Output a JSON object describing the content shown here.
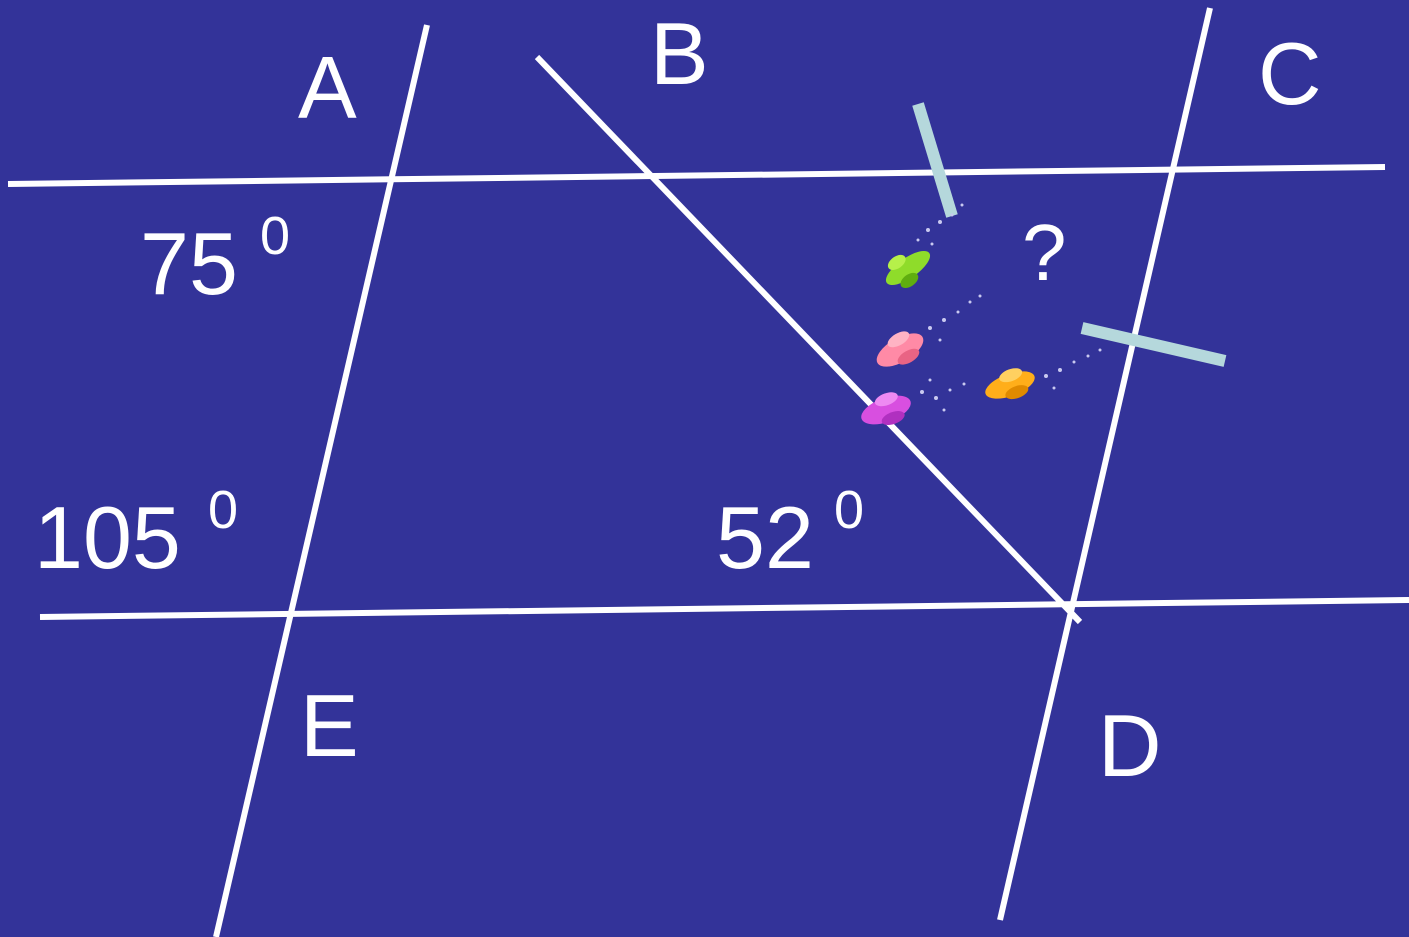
{
  "colors": {
    "background": "#333399",
    "line": "#ffffff",
    "tick_mark": "#b5d8dc",
    "bug_green": "#8fdc2a",
    "bug_pink": "#ff8aa6",
    "bug_magenta": "#d84fe0",
    "bug_orange": "#ffae1a"
  },
  "points": {
    "A": "A",
    "B": "B",
    "C": "C",
    "D": "D",
    "E": "E"
  },
  "angles": {
    "angle_75": {
      "value": "75",
      "degree": "0"
    },
    "angle_105": {
      "value": "105",
      "degree": "0"
    },
    "angle_52": {
      "value": "52",
      "degree": "0"
    },
    "unknown": "?"
  },
  "decorations": [
    "bug-icon",
    "bug-icon",
    "bug-icon",
    "bug-icon"
  ]
}
